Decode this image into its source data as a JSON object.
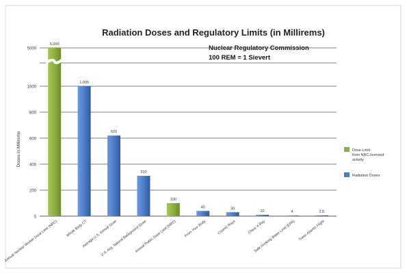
{
  "chart_data": {
    "type": "bar",
    "title": "Radiation Doses and Regulatory Limits (in Millirems)",
    "annotation_lines": [
      "Nuclear Regulatory Commission",
      "100 REM = 1 Sievert"
    ],
    "xlabel": "",
    "ylabel": "Doses in Millirems",
    "ylim": [
      0,
      1200
    ],
    "axis_break": true,
    "y_ticks": [
      0,
      200,
      400,
      600,
      800,
      1000
    ],
    "y_break_tick": "5000",
    "grid": true,
    "legend_position": "right",
    "series_colors": {
      "Dose Limit from NRC-licensed activity": "#8fb040",
      "Radiation Doses": "#4e7cc6"
    },
    "categories": [
      {
        "label": "Annual Nuclear Worker Dose Limit (NRC)",
        "value": 5000,
        "value_label": "5,000",
        "series": "Dose Limit from NRC-licensed activity"
      },
      {
        "label": "Whole Body CT",
        "value": 1000,
        "value_label": "1,000",
        "series": "Radiation Doses"
      },
      {
        "label": "Average U.S. Annual Dose",
        "value": 620,
        "value_label": "620",
        "series": "Radiation Doses"
      },
      {
        "label": "U.S. Avg. Natural Background Dose",
        "value": 310,
        "value_label": "310",
        "series": "Radiation Doses"
      },
      {
        "label": "Annual Public Dose Limit (NRC)",
        "value": 100,
        "value_label": "100",
        "series": "Dose Limit from NRC-licensed activity"
      },
      {
        "label": "From Your Body",
        "value": 40,
        "value_label": "40",
        "series": "Radiation Doses"
      },
      {
        "label": "Cosmic Rays",
        "value": 30,
        "value_label": "30",
        "series": "Radiation Doses"
      },
      {
        "label": "Chest X-Ray",
        "value": 10,
        "value_label": "10",
        "series": "Radiation Doses"
      },
      {
        "label": "Safe Drinking Water Limit (EPA)",
        "value": 4,
        "value_label": "4",
        "series": "Dose Limit from NRC-licensed activity"
      },
      {
        "label": "Trans-Atlantic Flight",
        "value": 2.5,
        "value_label": "2.5",
        "series": "Radiation Doses"
      }
    ],
    "legend": [
      {
        "name": "Dose Limit from NRC-licensed activity",
        "color": "#8fb040"
      },
      {
        "name": "Radiation Doses",
        "color": "#4e7cc6"
      }
    ]
  }
}
